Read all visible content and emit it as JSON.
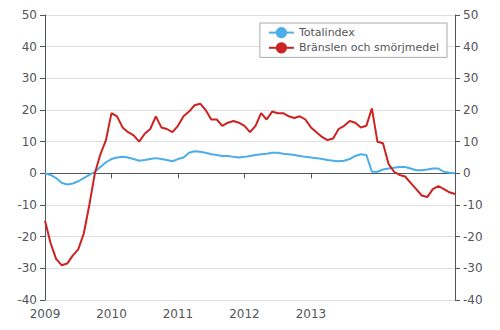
{
  "chart_data": {
    "type": "line",
    "x": [
      2009,
      2009.0833333333333,
      2009.1666666666667,
      2009.25,
      2009.3333333333333,
      2009.4166666666667,
      2009.5,
      2009.5833333333333,
      2009.6666666666667,
      2009.75,
      2009.8333333333333,
      2009.9166666666667,
      2010,
      2010.0833333333333,
      2010.1666666666667,
      2010.25,
      2010.3333333333333,
      2010.4166666666667,
      2010.5,
      2010.5833333333333,
      2010.6666666666667,
      2010.75,
      2010.8333333333333,
      2010.9166666666667,
      2011,
      2011.0833333333333,
      2011.1666666666667,
      2011.25,
      2011.3333333333333,
      2011.4166666666667,
      2011.5,
      2011.5833333333333,
      2011.6666666666667,
      2011.75,
      2011.8333333333333,
      2011.9166666666667,
      2012,
      2012.0833333333333,
      2012.1666666666667,
      2012.25,
      2012.3333333333333,
      2012.4166666666667,
      2012.5,
      2012.5833333333333,
      2012.6666666666667,
      2012.75,
      2012.8333333333333,
      2012.9166666666667,
      2013,
      2013.0833333333333,
      2013.1666666666667,
      2013.25,
      2013.3333333333333,
      2013.4166666666667,
      2013.5,
      2013.5833333333333,
      2013.6666666666667,
      2013.75,
      2013.8333333333333,
      2013.9166666666667,
      2014,
      2014.0833333333333,
      2014.1666666666667,
      2014.25,
      2014.3333333333333,
      2014.4166666666667,
      2014.5,
      2014.5833333333333,
      2014.6666666666667,
      2014.75,
      2014.8333333333333,
      2014.9166666666667,
      2015,
      2015.0833333333333,
      2015.1666666666667
    ],
    "series": [
      {
        "name": "Totalindex",
        "color": "#4BAEE8",
        "values": [
          0.0,
          -0.5,
          -1.5,
          -3.0,
          -3.5,
          -3.2,
          -2.5,
          -1.5,
          -0.5,
          0.5,
          2.0,
          3.5,
          4.5,
          5.0,
          5.2,
          5.0,
          4.5,
          4.0,
          4.2,
          4.5,
          4.8,
          4.5,
          4.2,
          3.8,
          4.5,
          5.0,
          6.5,
          7.0,
          6.8,
          6.5,
          6.0,
          5.8,
          5.5,
          5.5,
          5.2,
          5.0,
          5.2,
          5.5,
          5.8,
          6.0,
          6.2,
          6.5,
          6.5,
          6.2,
          6.0,
          5.8,
          5.5,
          5.2,
          5.0,
          4.8,
          4.5,
          4.2,
          4.0,
          3.8,
          4.0,
          4.5,
          5.5,
          6.0,
          5.8,
          0.5,
          0.5,
          1.2,
          1.5,
          1.8,
          2.0,
          2.0,
          1.5,
          1.0,
          1.0,
          1.2,
          1.5,
          1.5,
          0.5,
          0.2,
          0.0
        ]
      },
      {
        "name": "Bränslen och smörjmedel",
        "color": "#CC2222",
        "values": [
          -15.0,
          -22.0,
          -27.0,
          -29.0,
          -28.5,
          -26.0,
          -24.0,
          -19.0,
          -10.0,
          0.0,
          6.0,
          10.5,
          19.0,
          18.0,
          14.5,
          13.0,
          12.0,
          10.0,
          12.5,
          14.0,
          18.0,
          14.5,
          14.0,
          13.0,
          15.0,
          18.0,
          19.5,
          21.5,
          22.0,
          20.0,
          17.0,
          17.0,
          15.0,
          16.0,
          16.5,
          16.0,
          15.0,
          13.0,
          15.0,
          19.0,
          17.0,
          19.5,
          19.0,
          19.0,
          18.0,
          17.5,
          18.0,
          17.0,
          14.5,
          13.0,
          11.5,
          10.5,
          11.0,
          14.0,
          15.0,
          16.5,
          16.0,
          14.5,
          15.0,
          20.5,
          10.0,
          9.5,
          3.0,
          0.5,
          -0.5,
          -1.0,
          -3.0,
          -5.0,
          -7.0,
          -7.5,
          -5.0,
          -4.0,
          -5.0,
          -6.0,
          -6.5
        ]
      }
    ],
    "xlim": [
      2009,
      2015.1666666666667
    ],
    "xticks": [
      2009,
      2010,
      2011,
      2012,
      2013
    ],
    "ylim": [
      -40,
      50
    ],
    "yticks": [
      -40,
      -30,
      -20,
      -10,
      0,
      10,
      20,
      30,
      40,
      50
    ],
    "y2lim": [
      -40,
      50
    ],
    "y2ticks": [
      -40,
      -30,
      -20,
      -10,
      0,
      10,
      20,
      30,
      40,
      50
    ],
    "grid": true,
    "legend": "upper right"
  }
}
